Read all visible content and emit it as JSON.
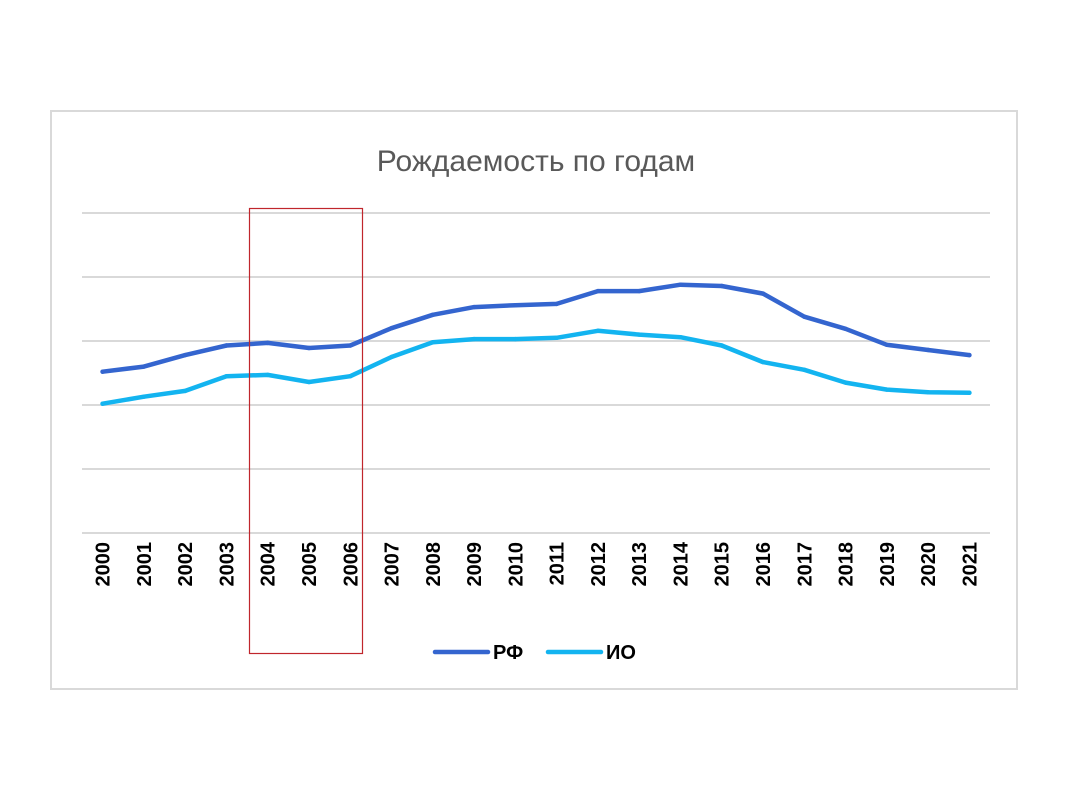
{
  "chart_data": {
    "type": "line",
    "title": "Рождаемость по годам",
    "xlabel": "",
    "ylabel": "",
    "categories": [
      "2000",
      "2001",
      "2002",
      "2003",
      "2004",
      "2005",
      "2006",
      "2007",
      "2008",
      "2009",
      "2010",
      "2011",
      "2012",
      "2013",
      "2014",
      "2015",
      "2016",
      "2017",
      "2018",
      "2019",
      "2020",
      "2021"
    ],
    "ylim": [
      0,
      5
    ],
    "grid": true,
    "legend_position": "bottom",
    "series": [
      {
        "name": "РФ",
        "color": "#3465cf",
        "values": [
          2.52,
          2.6,
          2.78,
          2.93,
          2.97,
          2.89,
          2.93,
          3.2,
          3.41,
          3.53,
          3.56,
          3.58,
          3.78,
          3.78,
          3.88,
          3.86,
          3.74,
          3.38,
          3.19,
          2.94,
          2.86,
          2.78
        ]
      },
      {
        "name": "ИО",
        "color": "#13b4f0",
        "values": [
          2.02,
          2.13,
          2.22,
          2.45,
          2.47,
          2.36,
          2.45,
          2.75,
          2.98,
          3.03,
          3.03,
          3.05,
          3.16,
          3.1,
          3.06,
          2.93,
          2.67,
          2.55,
          2.35,
          2.24,
          2.2,
          2.19
        ]
      }
    ]
  },
  "highlight": {
    "border_color": "#c0262c"
  }
}
